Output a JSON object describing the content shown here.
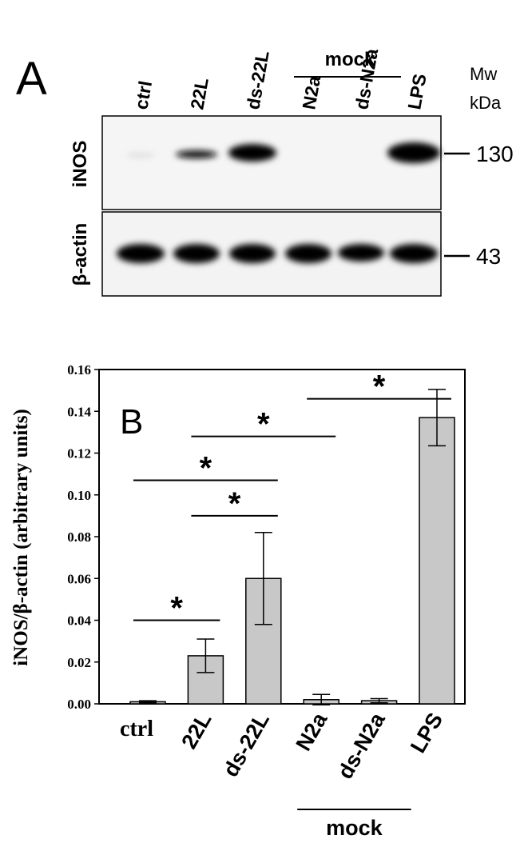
{
  "panel_a": {
    "label": "A",
    "lanes": [
      "ctrl",
      "22L",
      "ds-22L",
      "N2a",
      "ds-N2a",
      "LPS"
    ],
    "group": "mock",
    "mw_title": "Mw",
    "mw_unit": "kDa",
    "blots": [
      {
        "name": "iNOS",
        "marker": "130"
      },
      {
        "name": "β-actin",
        "marker": "43"
      }
    ]
  },
  "chart_data": {
    "type": "bar",
    "panel_label": "B",
    "y_label": "iNOS/β-actin (arbitrary units)",
    "categories": [
      "ctrl",
      "22L",
      "ds-22L",
      "N2a",
      "ds-N2a",
      "LPS"
    ],
    "values": [
      0.001,
      0.023,
      0.06,
      0.002,
      0.0015,
      0.137
    ],
    "errors": [
      0.0005,
      0.008,
      0.022,
      0.0025,
      0.001,
      0.0135
    ],
    "color": "#c8c8c8",
    "ylim": [
      0,
      0.16
    ],
    "yticks": [
      {
        "value": 0,
        "label": "0.00"
      },
      {
        "value": 0.02,
        "label": "0.02"
      },
      {
        "value": 0.04,
        "label": "0.04"
      },
      {
        "value": 0.06,
        "label": "0.06"
      },
      {
        "value": 0.08,
        "label": "0.08"
      },
      {
        "value": 0.1,
        "label": "0.10"
      },
      {
        "value": 0.12,
        "label": "0.12"
      },
      {
        "value": 0.14,
        "label": "0.14"
      },
      {
        "value": 0.16,
        "label": "0.16"
      }
    ],
    "significance": [
      {
        "from": 0,
        "to": 1,
        "y": 0.04,
        "label": "*"
      },
      {
        "from": 1,
        "to": 2,
        "y": 0.09,
        "label": "*"
      },
      {
        "from": 0,
        "to": 2,
        "y": 0.107,
        "label": "*"
      },
      {
        "from": 1,
        "to": 3,
        "y": 0.128,
        "label": "*"
      },
      {
        "from": 3,
        "to": 5,
        "y": 0.146,
        "label": "*"
      }
    ],
    "group": {
      "label": "mock",
      "from": 3,
      "to": 4
    }
  }
}
